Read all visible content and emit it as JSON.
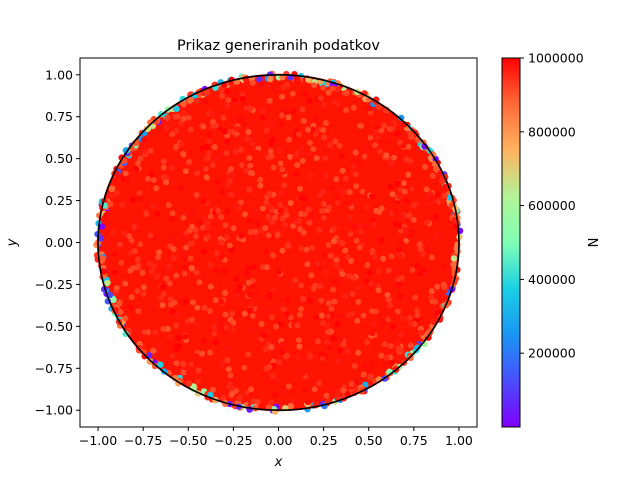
{
  "chart_data": {
    "type": "scatter",
    "title": "Prikaz generiranih podatkov",
    "xlabel": "x",
    "ylabel": "y",
    "xlim": [
      -1.1,
      1.1
    ],
    "ylim": [
      -1.1,
      1.1
    ],
    "xticks": [
      -1.0,
      -0.75,
      -0.5,
      -0.25,
      0.0,
      0.25,
      0.5,
      0.75,
      1.0
    ],
    "yticks": [
      -1.0,
      -0.75,
      -0.5,
      -0.25,
      0.0,
      0.25,
      0.5,
      0.75,
      1.0
    ],
    "xtick_labels": [
      "−1.00",
      "−0.75",
      "−0.50",
      "−0.25",
      "0.00",
      "0.25",
      "0.50",
      "0.75",
      "1.00"
    ],
    "ytick_labels": [
      "−1.00",
      "−0.75",
      "−0.50",
      "−0.25",
      "0.00",
      "0.25",
      "0.50",
      "0.75",
      "1.00"
    ],
    "grid": false,
    "series": [
      {
        "kind": "scatter",
        "region": "unit disk",
        "count": 1000000,
        "color_by": "N",
        "colormap": "rainbow"
      },
      {
        "kind": "line",
        "shape": "circle",
        "center": [
          0,
          0
        ],
        "radius": 1,
        "color": "#000000"
      }
    ],
    "colorbar": {
      "label": "N",
      "range": [
        1,
        1000000
      ],
      "ticks": [
        200000,
        400000,
        600000,
        800000,
        1000000
      ],
      "tick_labels": [
        "200000",
        "400000",
        "600000",
        "800000",
        "1000000"
      ]
    }
  }
}
